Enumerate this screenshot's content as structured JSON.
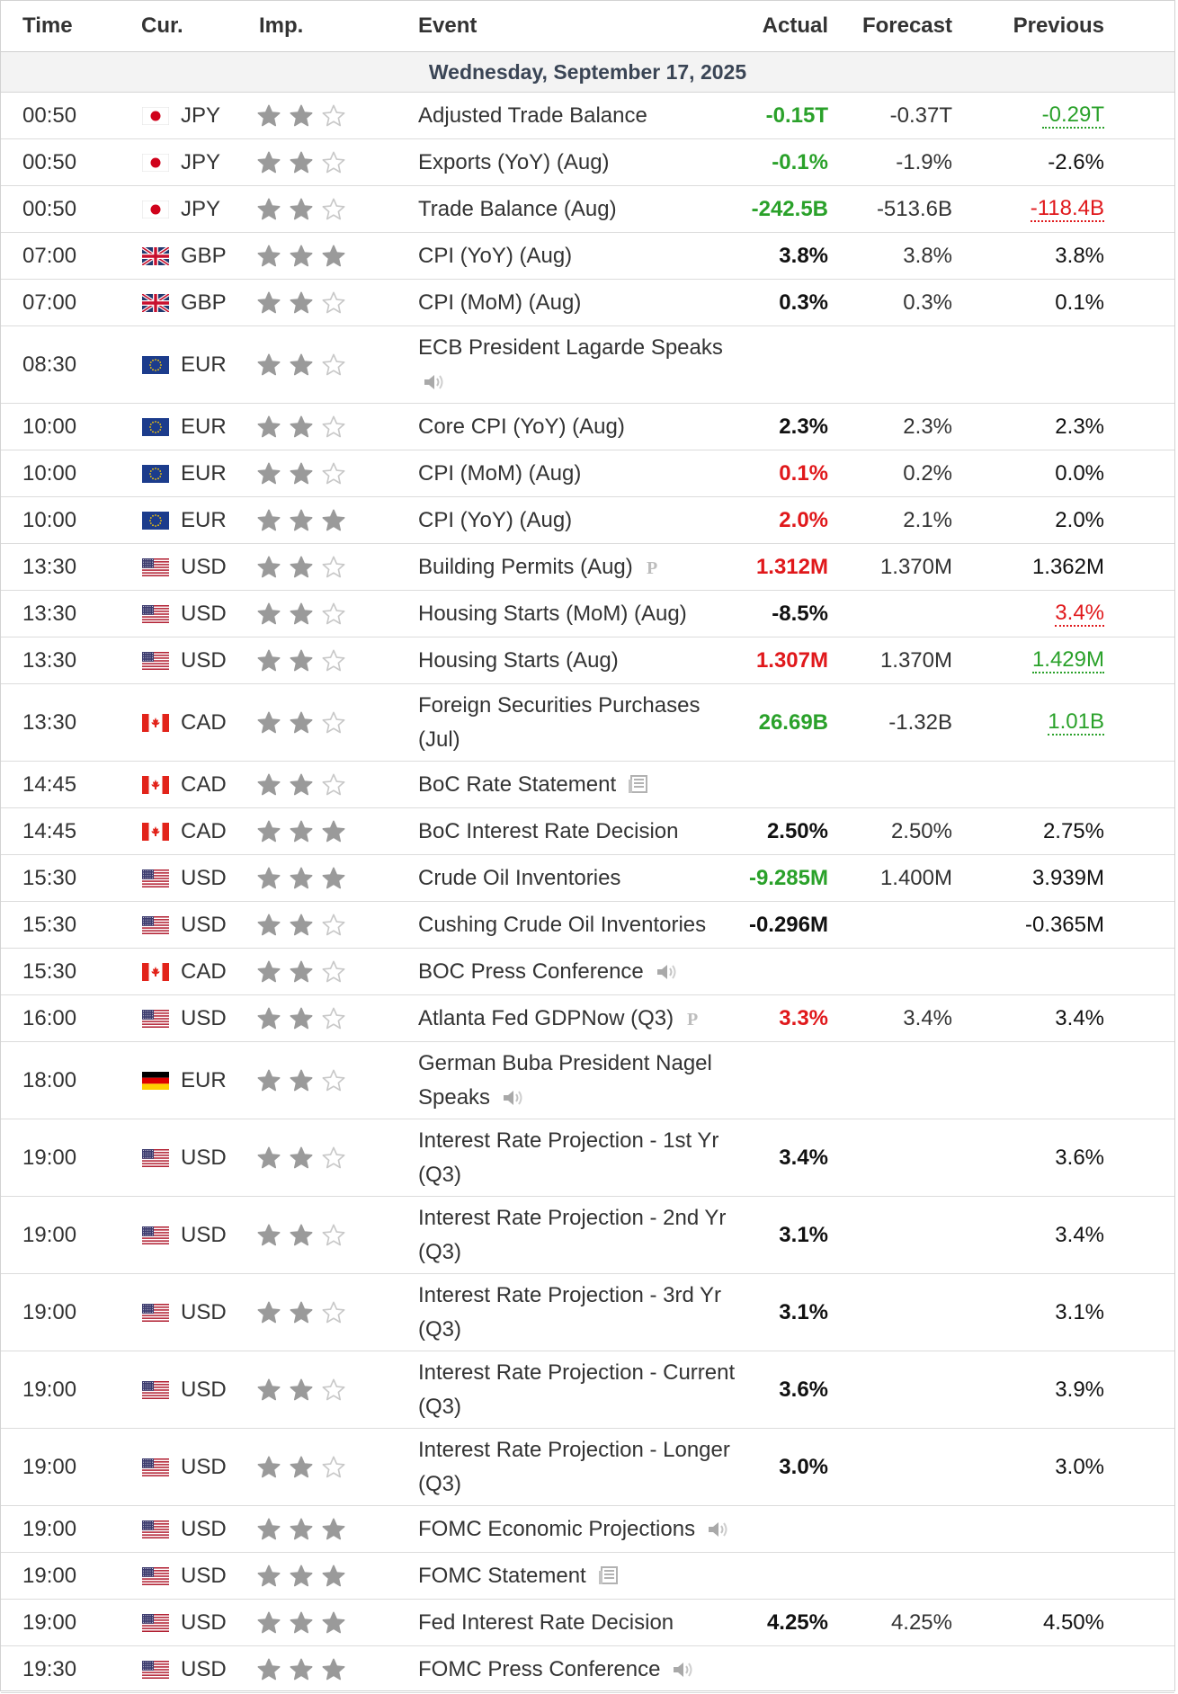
{
  "columns": {
    "time": "Time",
    "currency": "Cur.",
    "importance": "Imp.",
    "event": "Event",
    "actual": "Actual",
    "forecast": "Forecast",
    "previous": "Previous"
  },
  "date_header": "Wednesday, September 17, 2025",
  "colors": {
    "green": "#2aa12a",
    "red": "#e0181b",
    "star_on": "#9a9a9a",
    "star_off": "#c8c8c8"
  },
  "events": [
    {
      "time": "00:50",
      "flag": "jp",
      "cur": "JPY",
      "stars": 2,
      "event": "Adjusted Trade Balance",
      "icon": "",
      "actual": "-0.15T",
      "actual_color": "green",
      "forecast": "-0.37T",
      "previous": "-0.29T",
      "previous_style": "u-green"
    },
    {
      "time": "00:50",
      "flag": "jp",
      "cur": "JPY",
      "stars": 2,
      "event": "Exports (YoY) (Aug)",
      "icon": "",
      "actual": "-0.1%",
      "actual_color": "green",
      "forecast": "-1.9%",
      "previous": "-2.6%",
      "previous_style": ""
    },
    {
      "time": "00:50",
      "flag": "jp",
      "cur": "JPY",
      "stars": 2,
      "event": "Trade Balance (Aug)",
      "icon": "",
      "actual": "-242.5B",
      "actual_color": "green",
      "forecast": "-513.6B",
      "previous": "-118.4B",
      "previous_style": "u-red"
    },
    {
      "time": "07:00",
      "flag": "gb",
      "cur": "GBP",
      "stars": 3,
      "event": "CPI (YoY) (Aug)",
      "icon": "",
      "actual": "3.8%",
      "actual_color": "black",
      "forecast": "3.8%",
      "previous": "3.8%",
      "previous_style": ""
    },
    {
      "time": "07:00",
      "flag": "gb",
      "cur": "GBP",
      "stars": 2,
      "event": "CPI (MoM) (Aug)",
      "icon": "",
      "actual": "0.3%",
      "actual_color": "black",
      "forecast": "0.3%",
      "previous": "0.1%",
      "previous_style": ""
    },
    {
      "time": "08:30",
      "flag": "eu",
      "cur": "EUR",
      "stars": 2,
      "event": "ECB President Lagarde Speaks",
      "icon": "speaker",
      "actual": "",
      "actual_color": "black",
      "forecast": "",
      "previous": "",
      "previous_style": "",
      "tall": true,
      "icon_newline": true
    },
    {
      "time": "10:00",
      "flag": "eu",
      "cur": "EUR",
      "stars": 2,
      "event": "Core CPI (YoY) (Aug)",
      "icon": "",
      "actual": "2.3%",
      "actual_color": "black",
      "forecast": "2.3%",
      "previous": "2.3%",
      "previous_style": ""
    },
    {
      "time": "10:00",
      "flag": "eu",
      "cur": "EUR",
      "stars": 2,
      "event": "CPI (MoM) (Aug)",
      "icon": "",
      "actual": "0.1%",
      "actual_color": "red",
      "forecast": "0.2%",
      "previous": "0.0%",
      "previous_style": ""
    },
    {
      "time": "10:00",
      "flag": "eu",
      "cur": "EUR",
      "stars": 3,
      "event": "CPI (YoY) (Aug)",
      "icon": "",
      "actual": "2.0%",
      "actual_color": "red",
      "forecast": "2.1%",
      "previous": "2.0%",
      "previous_style": ""
    },
    {
      "time": "13:30",
      "flag": "us",
      "cur": "USD",
      "stars": 2,
      "event": "Building Permits (Aug)",
      "icon": "prelim",
      "actual": "1.312M",
      "actual_color": "red",
      "forecast": "1.370M",
      "previous": "1.362M",
      "previous_style": ""
    },
    {
      "time": "13:30",
      "flag": "us",
      "cur": "USD",
      "stars": 2,
      "event": "Housing Starts (MoM) (Aug)",
      "icon": "",
      "actual": "-8.5%",
      "actual_color": "black",
      "forecast": "",
      "previous": "3.4%",
      "previous_style": "u-red"
    },
    {
      "time": "13:30",
      "flag": "us",
      "cur": "USD",
      "stars": 2,
      "event": "Housing Starts (Aug)",
      "icon": "",
      "actual": "1.307M",
      "actual_color": "red",
      "forecast": "1.370M",
      "previous": "1.429M",
      "previous_style": "u-green"
    },
    {
      "time": "13:30",
      "flag": "ca",
      "cur": "CAD",
      "stars": 2,
      "event": "Foreign Securities Purchases (Jul)",
      "icon": "",
      "actual": "26.69B",
      "actual_color": "green",
      "forecast": "-1.32B",
      "previous": "1.01B",
      "previous_style": "u-green",
      "tall": true
    },
    {
      "time": "14:45",
      "flag": "ca",
      "cur": "CAD",
      "stars": 2,
      "event": "BoC Rate Statement",
      "icon": "doc",
      "actual": "",
      "actual_color": "black",
      "forecast": "",
      "previous": "",
      "previous_style": ""
    },
    {
      "time": "14:45",
      "flag": "ca",
      "cur": "CAD",
      "stars": 3,
      "event": "BoC Interest Rate Decision",
      "icon": "",
      "actual": "2.50%",
      "actual_color": "black",
      "forecast": "2.50%",
      "previous": "2.75%",
      "previous_style": ""
    },
    {
      "time": "15:30",
      "flag": "us",
      "cur": "USD",
      "stars": 3,
      "event": "Crude Oil Inventories",
      "icon": "",
      "actual": "-9.285M",
      "actual_color": "green",
      "forecast": "1.400M",
      "previous": "3.939M",
      "previous_style": ""
    },
    {
      "time": "15:30",
      "flag": "us",
      "cur": "USD",
      "stars": 2,
      "event": "Cushing Crude Oil Inventories",
      "icon": "",
      "actual": "-0.296M",
      "actual_color": "black",
      "forecast": "",
      "previous": "-0.365M",
      "previous_style": ""
    },
    {
      "time": "15:30",
      "flag": "ca",
      "cur": "CAD",
      "stars": 2,
      "event": "BOC Press Conference",
      "icon": "speaker",
      "actual": "",
      "actual_color": "black",
      "forecast": "",
      "previous": "",
      "previous_style": ""
    },
    {
      "time": "16:00",
      "flag": "us",
      "cur": "USD",
      "stars": 2,
      "event": "Atlanta Fed GDPNow (Q3)",
      "icon": "prelim",
      "actual": "3.3%",
      "actual_color": "red",
      "forecast": "3.4%",
      "previous": "3.4%",
      "previous_style": ""
    },
    {
      "time": "18:00",
      "flag": "de",
      "cur": "EUR",
      "stars": 2,
      "event": "German Buba President Nagel Speaks",
      "icon": "speaker",
      "actual": "",
      "actual_color": "black",
      "forecast": "",
      "previous": "",
      "previous_style": "",
      "tall": true
    },
    {
      "time": "19:00",
      "flag": "us",
      "cur": "USD",
      "stars": 2,
      "event": "Interest Rate Projection - 1st Yr (Q3)",
      "icon": "",
      "actual": "3.4%",
      "actual_color": "black",
      "forecast": "",
      "previous": "3.6%",
      "previous_style": "",
      "tall": true
    },
    {
      "time": "19:00",
      "flag": "us",
      "cur": "USD",
      "stars": 2,
      "event": "Interest Rate Projection - 2nd Yr (Q3)",
      "icon": "",
      "actual": "3.1%",
      "actual_color": "black",
      "forecast": "",
      "previous": "3.4%",
      "previous_style": "",
      "tall": true
    },
    {
      "time": "19:00",
      "flag": "us",
      "cur": "USD",
      "stars": 2,
      "event": "Interest Rate Projection - 3rd Yr (Q3)",
      "icon": "",
      "actual": "3.1%",
      "actual_color": "black",
      "forecast": "",
      "previous": "3.1%",
      "previous_style": "",
      "tall": true
    },
    {
      "time": "19:00",
      "flag": "us",
      "cur": "USD",
      "stars": 2,
      "event": "Interest Rate Projection - Current (Q3)",
      "icon": "",
      "actual": "3.6%",
      "actual_color": "black",
      "forecast": "",
      "previous": "3.9%",
      "previous_style": "",
      "tall": true
    },
    {
      "time": "19:00",
      "flag": "us",
      "cur": "USD",
      "stars": 2,
      "event": "Interest Rate Projection - Longer (Q3)",
      "icon": "",
      "actual": "3.0%",
      "actual_color": "black",
      "forecast": "",
      "previous": "3.0%",
      "previous_style": "",
      "tall": true
    },
    {
      "time": "19:00",
      "flag": "us",
      "cur": "USD",
      "stars": 3,
      "event": "FOMC Economic Projections",
      "icon": "speaker",
      "actual": "",
      "actual_color": "black",
      "forecast": "",
      "previous": "",
      "previous_style": ""
    },
    {
      "time": "19:00",
      "flag": "us",
      "cur": "USD",
      "stars": 3,
      "event": "FOMC Statement",
      "icon": "doc",
      "actual": "",
      "actual_color": "black",
      "forecast": "",
      "previous": "",
      "previous_style": ""
    },
    {
      "time": "19:00",
      "flag": "us",
      "cur": "USD",
      "stars": 3,
      "event": "Fed Interest Rate Decision",
      "icon": "",
      "actual": "4.25%",
      "actual_color": "black",
      "forecast": "4.25%",
      "previous": "4.50%",
      "previous_style": ""
    },
    {
      "time": "19:30",
      "flag": "us",
      "cur": "USD",
      "stars": 3,
      "event": "FOMC Press Conference",
      "icon": "speaker",
      "actual": "",
      "actual_color": "black",
      "forecast": "",
      "previous": "",
      "previous_style": ""
    }
  ]
}
